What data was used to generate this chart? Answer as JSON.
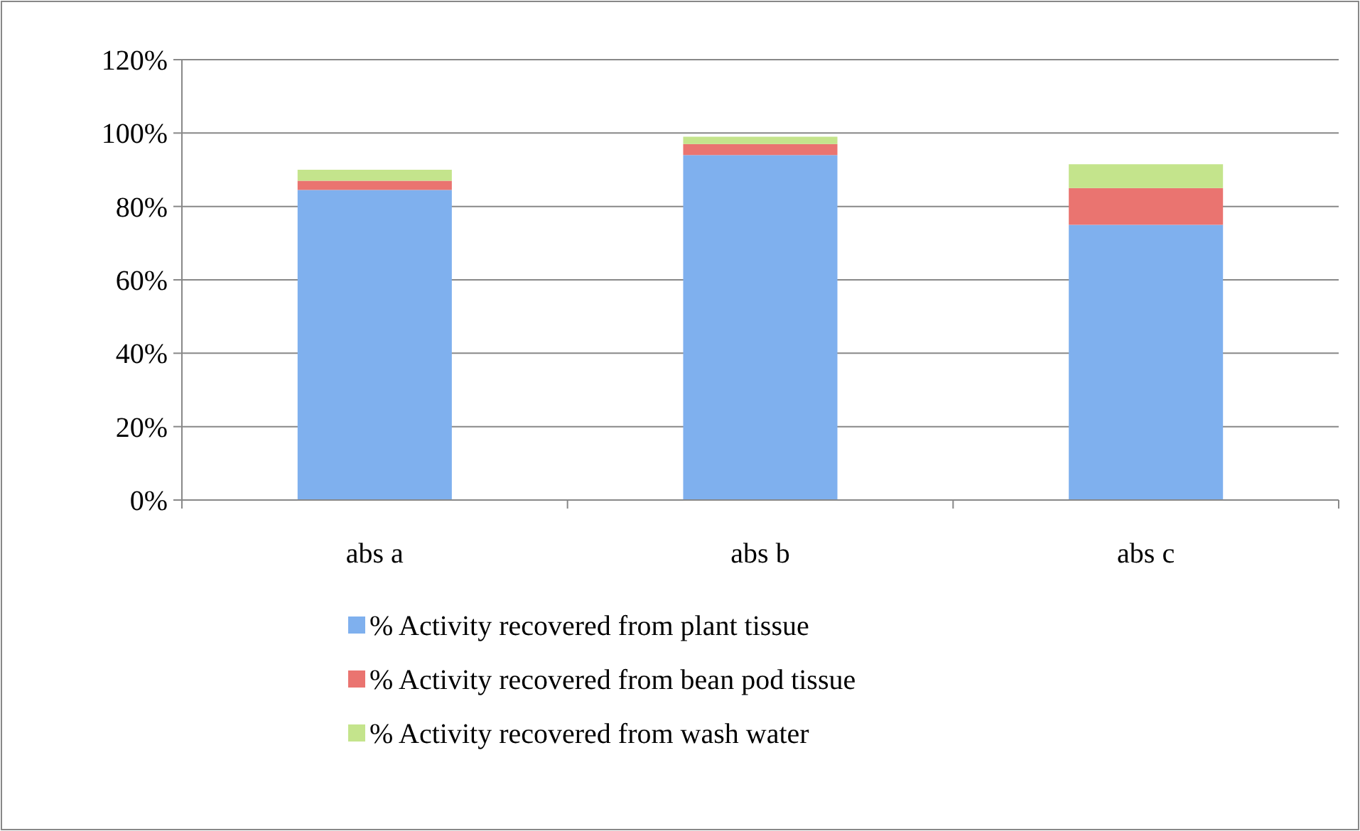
{
  "chart_data": {
    "type": "bar",
    "stacked": true,
    "categories": [
      "abs a",
      "abs b",
      "abs c"
    ],
    "series": [
      {
        "name": "% Activity recovered from plant tissue",
        "color": "#7fb0ee",
        "values": [
          84.5,
          94,
          75
        ]
      },
      {
        "name": "% Activity recovered from bean pod tissue",
        "color": "#ea7470",
        "values": [
          2.5,
          3,
          10
        ]
      },
      {
        "name": "% Activity recovered from wash water",
        "color": "#c4e48c",
        "values": [
          3,
          2,
          6.5
        ]
      }
    ],
    "ylim": [
      0,
      120
    ],
    "yticks": [
      {
        "value": 0,
        "label": "0%"
      },
      {
        "value": 20,
        "label": "20%"
      },
      {
        "value": 40,
        "label": "40%"
      },
      {
        "value": 60,
        "label": "60%"
      },
      {
        "value": 80,
        "label": "80%"
      },
      {
        "value": 100,
        "label": "100%"
      },
      {
        "value": 120,
        "label": "120%"
      }
    ],
    "grid": "y",
    "legend": "bottom"
  }
}
